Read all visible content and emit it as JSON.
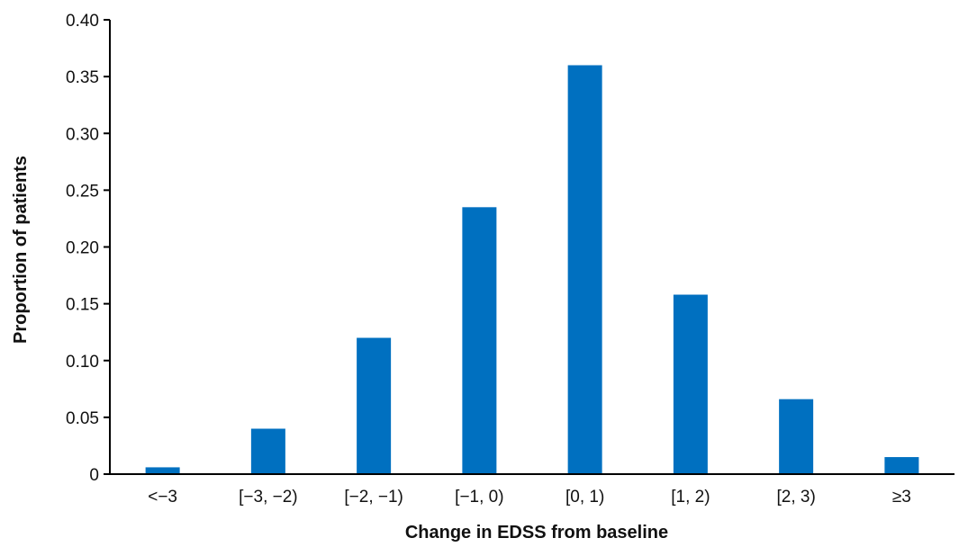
{
  "chart_data": {
    "type": "bar",
    "title": "",
    "xlabel": "Change in EDSS from baseline",
    "ylabel": "Proportion of patients",
    "categories": [
      "<−3",
      "[−3, −2)",
      "[−2, −1)",
      "[−1, 0)",
      "[0, 1)",
      "[1, 2)",
      "[2, 3)",
      "≥3"
    ],
    "values": [
      0.006,
      0.04,
      0.12,
      0.235,
      0.36,
      0.158,
      0.066,
      0.015
    ],
    "ylim": [
      0,
      0.4
    ],
    "yticks": [
      "0",
      "0.05",
      "0.10",
      "0.15",
      "0.20",
      "0.25",
      "0.30",
      "0.35",
      "0.40"
    ],
    "grid": false,
    "legend": "none",
    "bar_color": "#0070c0"
  }
}
